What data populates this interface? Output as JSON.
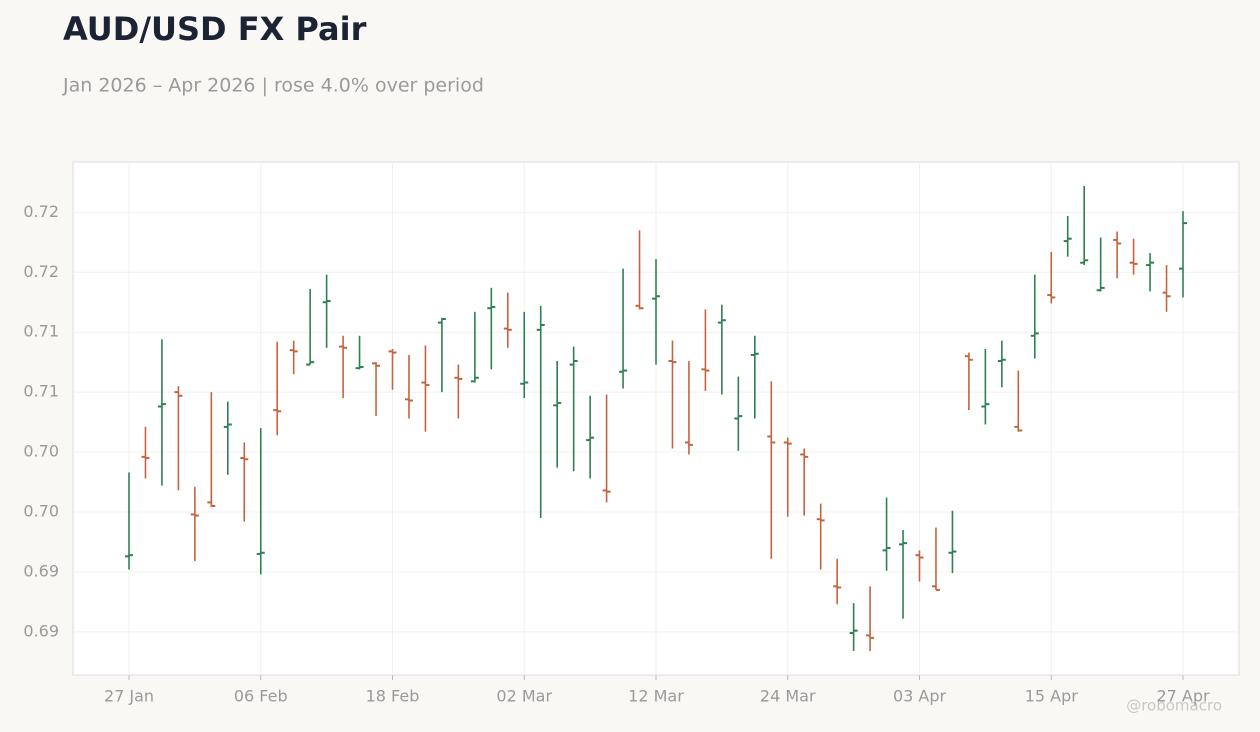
{
  "chart_data": {
    "type": "ohlc",
    "title": "AUD/USD FX Pair",
    "subtitle": "Jan 2026 – Apr 2026 | rose 4.0% over period",
    "watermark": "@robomacro",
    "categories": [
      "27 Jan",
      null,
      null,
      null,
      null,
      null,
      null,
      null,
      "06 Feb",
      null,
      null,
      null,
      null,
      null,
      null,
      null,
      "18 Feb",
      null,
      null,
      null,
      null,
      null,
      null,
      null,
      "02 Mar",
      null,
      null,
      null,
      null,
      null,
      null,
      null,
      "12 Mar",
      null,
      null,
      null,
      null,
      null,
      null,
      null,
      "24 Mar",
      null,
      null,
      null,
      null,
      null,
      null,
      null,
      "03 Apr",
      null,
      null,
      null,
      null,
      null,
      null,
      null,
      "15 Apr",
      null,
      null,
      null,
      null,
      null,
      null,
      null,
      "27 Apr"
    ],
    "open": [
      0.6963,
      0.7046,
      0.7088,
      0.71,
      0.6998,
      0.7008,
      0.7071,
      0.7045,
      0.6965,
      0.7085,
      0.7135,
      0.7123,
      0.7175,
      0.7138,
      0.712,
      0.7124,
      0.7134,
      0.7094,
      0.7108,
      0.7158,
      0.7112,
      0.7109,
      0.717,
      0.7153,
      0.7107,
      0.7152,
      0.7089,
      0.7123,
      0.706,
      0.7018,
      0.7117,
      0.7172,
      0.7178,
      0.7126,
      0.7058,
      0.7119,
      0.7158,
      0.7078,
      0.7131,
      0.7063,
      0.7058,
      0.7048,
      0.6994,
      0.6938,
      0.6899,
      0.6897,
      0.6968,
      0.6973,
      0.6964,
      0.6938,
      0.6966,
      0.713,
      0.7088,
      0.7126,
      0.7071,
      0.7147,
      0.7181,
      0.7226,
      0.7208,
      0.7185,
      0.7227,
      0.7208,
      0.7206,
      0.7183,
      0.7203
    ],
    "high": [
      0.7033,
      0.7071,
      0.7144,
      0.7105,
      0.7021,
      0.71,
      0.7092,
      0.7058,
      0.707,
      0.7142,
      0.7143,
      0.7186,
      0.7198,
      0.7147,
      0.7147,
      0.7125,
      0.7136,
      0.7131,
      0.7139,
      0.7162,
      0.7123,
      0.7167,
      0.7187,
      0.7183,
      0.7167,
      0.7172,
      0.7126,
      0.7138,
      0.7097,
      0.7098,
      0.7203,
      0.7235,
      0.7211,
      0.7143,
      0.7126,
      0.7169,
      0.7173,
      0.7113,
      0.7147,
      0.7109,
      0.7062,
      0.7053,
      0.7007,
      0.6961,
      0.6924,
      0.6938,
      0.7012,
      0.6985,
      0.6968,
      0.6987,
      0.7001,
      0.7133,
      0.7136,
      0.7143,
      0.7118,
      0.7198,
      0.7217,
      0.7247,
      0.7272,
      0.7229,
      0.7234,
      0.7228,
      0.7216,
      0.7206,
      0.7251
    ],
    "low": [
      0.6952,
      0.7028,
      0.7022,
      0.7018,
      0.6959,
      0.7004,
      0.7031,
      0.6992,
      0.6948,
      0.7064,
      0.7115,
      0.7123,
      0.7137,
      0.7095,
      0.7119,
      0.708,
      0.7102,
      0.7078,
      0.7067,
      0.71,
      0.7078,
      0.7108,
      0.7119,
      0.7137,
      0.7095,
      0.6995,
      0.7037,
      0.7034,
      0.7028,
      0.7008,
      0.7103,
      0.7169,
      0.7123,
      0.7053,
      0.7048,
      0.7101,
      0.7098,
      0.7051,
      0.7078,
      0.6961,
      0.6996,
      0.6997,
      0.6952,
      0.6923,
      0.6884,
      0.6884,
      0.6951,
      0.6911,
      0.6942,
      0.6935,
      0.6949,
      0.7085,
      0.7073,
      0.7104,
      0.7067,
      0.7128,
      0.7174,
      0.7213,
      0.7206,
      0.7184,
      0.7195,
      0.7198,
      0.7184,
      0.7167,
      0.7179
    ],
    "close": [
      0.6964,
      0.7045,
      0.709,
      0.7097,
      0.6997,
      0.7005,
      0.7073,
      0.7044,
      0.6966,
      0.7084,
      0.7134,
      0.7125,
      0.7176,
      0.7137,
      0.7121,
      0.7122,
      0.7133,
      0.7093,
      0.7106,
      0.7161,
      0.7111,
      0.7112,
      0.7171,
      0.7152,
      0.7108,
      0.7156,
      0.7091,
      0.7126,
      0.7062,
      0.7017,
      0.7118,
      0.717,
      0.718,
      0.7125,
      0.7056,
      0.7118,
      0.716,
      0.708,
      0.7132,
      0.7058,
      0.7057,
      0.7046,
      0.6993,
      0.6937,
      0.6901,
      0.6895,
      0.697,
      0.6974,
      0.6962,
      0.6935,
      0.6967,
      0.7127,
      0.709,
      0.7127,
      0.7068,
      0.7149,
      0.7179,
      0.7228,
      0.721,
      0.7187,
      0.7224,
      0.7207,
      0.7208,
      0.718,
      0.7241
    ],
    "up_color": "#2e8050",
    "down_color": "#c4643f",
    "ylim": [
      0.6864,
      0.7292
    ],
    "yticks": [
      {
        "value": 0.725,
        "label": "0.72"
      },
      0.72,
      {
        "value": 0.715,
        "label": "0.71"
      },
      0.71,
      {
        "value": 0.705,
        "label": "0.70"
      },
      {
        "value": 0.7,
        "label": "0.70"
      },
      {
        "value": 0.695,
        "label": "0.69"
      },
      0.69
    ],
    "grid": true
  }
}
